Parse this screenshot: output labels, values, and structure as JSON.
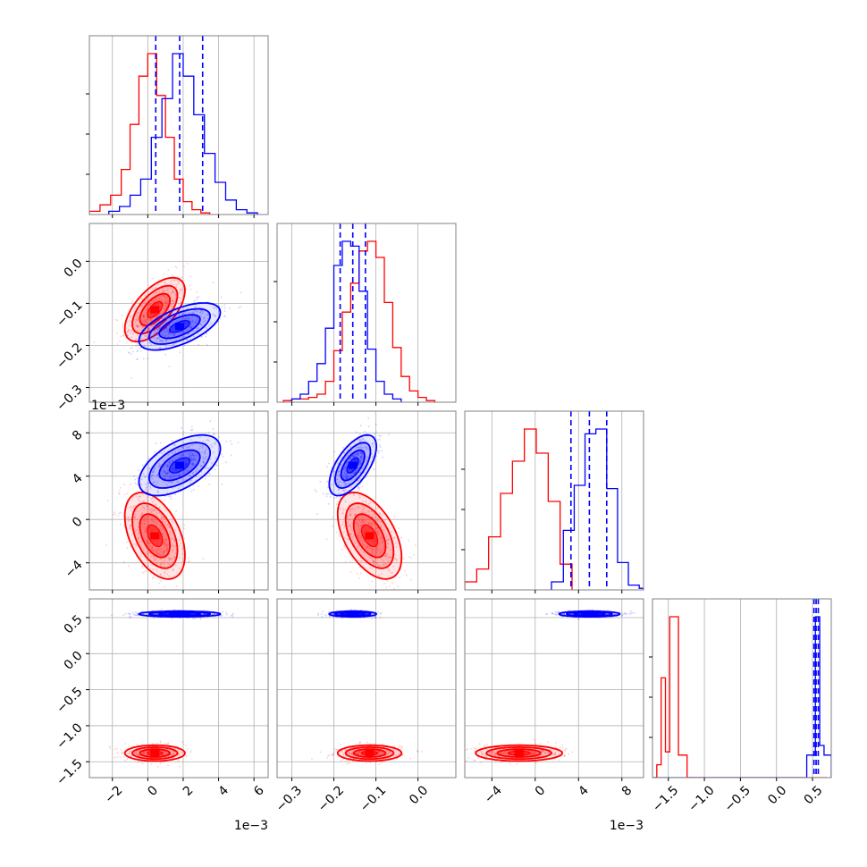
{
  "colors": {
    "series_a": "#ff0000",
    "series_b": "#0000ff",
    "grid": "#b0b0b0",
    "frame": "#808080"
  },
  "chart_data": {
    "type": "corner",
    "title": "",
    "grid": true,
    "parameters": [
      {
        "label": "",
        "range": [
          -3.3,
          6.8
        ],
        "ticks": [
          -2,
          0,
          2,
          4,
          6
        ],
        "tick_labels": [
          "−2",
          "0",
          "2",
          "4",
          "6"
        ],
        "offset_text": "1e−3"
      },
      {
        "label": "",
        "range": [
          -0.335,
          0.09
        ],
        "ticks": [
          -0.3,
          -0.2,
          -0.1,
          0.0
        ],
        "tick_labels": [
          "−0.3",
          "−0.2",
          "−0.1",
          "0.0"
        ],
        "offset_text": ""
      },
      {
        "label": "",
        "range": [
          -6.5,
          10.0
        ],
        "ticks": [
          -4,
          0,
          4,
          8
        ],
        "tick_labels": [
          "−4",
          "0",
          "4",
          "8"
        ],
        "offset_text": "1e−3"
      },
      {
        "label": "",
        "range": [
          -1.72,
          0.76
        ],
        "ticks": [
          -1.5,
          -1.0,
          -0.5,
          0.0,
          0.5
        ],
        "tick_labels": [
          "−1.5",
          "−1.0",
          "−0.5",
          "0.0",
          "0.5"
        ],
        "offset_text": ""
      }
    ],
    "series": [
      {
        "color_key": "series_a",
        "center": [
          0.4,
          -0.115,
          -1.5,
          -1.38
        ],
        "std": [
          0.85,
          0.038,
          2.0,
          0.055
        ],
        "correlation": [
          [
            1,
            0.6,
            -0.45,
            0
          ],
          [
            0.6,
            1,
            -0.5,
            0
          ],
          [
            -0.45,
            -0.5,
            1,
            0
          ],
          [
            0,
            0,
            0,
            1
          ]
        ],
        "hist_edges": [
          [
            -3.3,
            -2.7,
            -2.1,
            -1.5,
            -1.0,
            -0.5,
            0.0,
            0.5,
            1.0,
            1.5,
            2.0,
            2.5,
            3.0,
            3.5
          ],
          [
            -0.32,
            -0.3,
            -0.28,
            -0.26,
            -0.24,
            -0.22,
            -0.2,
            -0.18,
            -0.16,
            -0.14,
            -0.12,
            -0.1,
            -0.08,
            -0.06,
            -0.04,
            -0.02,
            0.0,
            0.02,
            0.04
          ],
          [
            -6.5,
            -5.4,
            -4.3,
            -3.2,
            -2.1,
            -1.0,
            0.1,
            1.2,
            2.3,
            3.4
          ],
          [
            -1.72,
            -1.66,
            -1.6,
            -1.54,
            -1.48,
            -1.42,
            -1.36,
            -1.3,
            -1.24,
            -1.18,
            -1.12,
            0.7
          ]
        ],
        "hist_counts": [
          [
            0.02,
            0.06,
            0.12,
            0.28,
            0.56,
            0.86,
            1.0,
            0.74,
            0.48,
            0.22,
            0.08,
            0.03,
            0.01
          ],
          [
            0.01,
            0.02,
            0.02,
            0.03,
            0.05,
            0.13,
            0.32,
            0.56,
            0.74,
            0.94,
            1.0,
            0.9,
            0.62,
            0.34,
            0.16,
            0.07,
            0.03,
            0.01
          ],
          [
            0.05,
            0.13,
            0.33,
            0.6,
            0.8,
            1.0,
            0.85,
            0.55,
            0.16
          ],
          [
            0.0,
            0.08,
            0.62,
            0.16,
            1.0,
            1.0,
            0.14,
            0.14,
            0.0,
            0.0,
            0.0
          ]
        ],
        "quantiles": []
      },
      {
        "color_key": "series_b",
        "center": [
          1.8,
          -0.155,
          5.0,
          0.55
        ],
        "std": [
          1.15,
          0.028,
          1.4,
          0.02
        ],
        "correlation": [
          [
            1,
            0.6,
            0.55,
            0
          ],
          [
            0.6,
            1,
            0.62,
            0
          ],
          [
            0.55,
            0.62,
            1,
            0
          ],
          [
            0,
            0,
            0,
            1
          ]
        ],
        "hist_edges": [
          [
            -2.2,
            -1.6,
            -1.0,
            -0.4,
            0.2,
            0.8,
            1.4,
            2.0,
            2.6,
            3.2,
            3.8,
            4.4,
            5.0,
            5.6,
            6.2
          ],
          [
            -0.3,
            -0.28,
            -0.26,
            -0.24,
            -0.22,
            -0.2,
            -0.18,
            -0.16,
            -0.14,
            -0.12,
            -0.1,
            -0.08,
            -0.06,
            -0.04
          ],
          [
            1.5,
            2.6,
            3.6,
            4.6,
            5.6,
            6.6,
            7.6,
            8.6,
            9.6,
            10.0
          ],
          [
            -1.72,
            0.42,
            0.48,
            0.54,
            0.6,
            0.66,
            0.72,
            0.76
          ]
        ],
        "hist_counts": [
          [
            0.02,
            0.05,
            0.12,
            0.22,
            0.48,
            0.72,
            1.0,
            0.86,
            0.62,
            0.38,
            0.2,
            0.09,
            0.03,
            0.01
          ],
          [
            0.02,
            0.05,
            0.13,
            0.24,
            0.46,
            0.85,
            1.0,
            0.97,
            0.69,
            0.33,
            0.13,
            0.05,
            0.02
          ],
          [
            0.05,
            0.37,
            0.65,
            0.97,
            1.0,
            0.63,
            0.17,
            0.03,
            0.01
          ],
          [
            0.0,
            0.14,
            0.14,
            1.0,
            0.2,
            0.14,
            0.14
          ]
        ],
        "quantiles": [
          [
            0.45,
            1.8,
            3.1
          ],
          [
            -0.185,
            -0.155,
            -0.125
          ],
          [
            3.3,
            5.0,
            6.6
          ],
          [
            0.52,
            0.55,
            0.58
          ]
        ]
      }
    ]
  }
}
